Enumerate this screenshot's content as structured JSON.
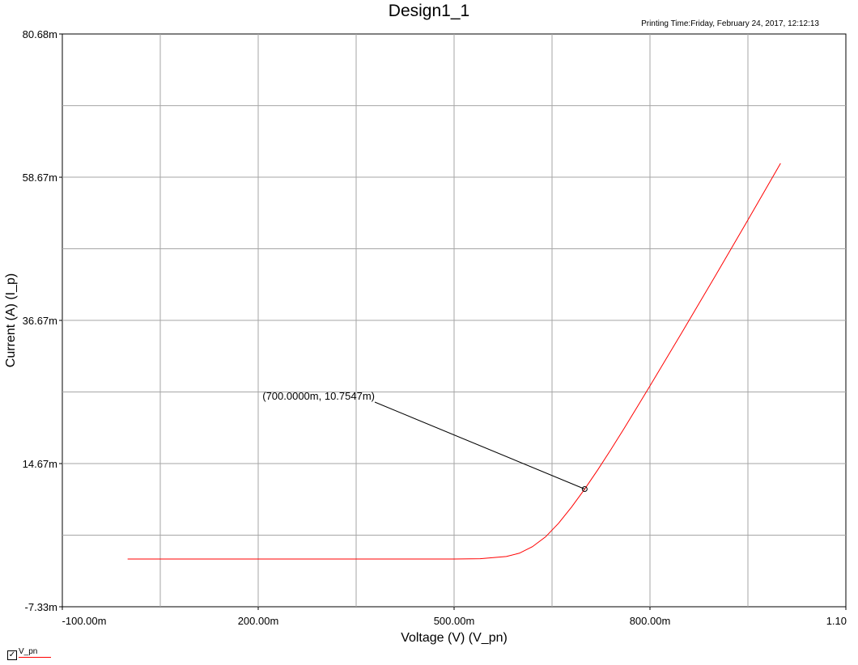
{
  "page": {
    "title": "Design1_1",
    "printing_time": "Printing Time:Friday, February 24, 2017, 12:12:13"
  },
  "legend": {
    "checked_mark": "✓",
    "series_name": "V_pn",
    "color": "#ff0000"
  },
  "chart_data": {
    "type": "line",
    "title": "Design1_1",
    "xlabel": "Voltage (V) (V_pn)",
    "ylabel": "Current (A) (I_p)",
    "xlim": [
      -0.1,
      1.1
    ],
    "ylim": [
      -0.00733,
      0.08068
    ],
    "x_ticks": [
      {
        "value": -0.1,
        "label": "-100.00m"
      },
      {
        "value": 0.2,
        "label": "200.00m"
      },
      {
        "value": 0.5,
        "label": "500.00m"
      },
      {
        "value": 0.8,
        "label": "800.00m"
      },
      {
        "value": 1.1,
        "label": "1.10"
      }
    ],
    "y_ticks": [
      {
        "value": -0.00733,
        "label": "-7.33m"
      },
      {
        "value": 0.01467,
        "label": "14.67m"
      },
      {
        "value": 0.03667,
        "label": "36.67m"
      },
      {
        "value": 0.05867,
        "label": "58.67m"
      },
      {
        "value": 0.08068,
        "label": "80.68m"
      }
    ],
    "x_minor_gridlines": [
      0.05,
      0.35,
      0.65,
      0.95
    ],
    "y_minor_gridlines": [
      0.00367,
      0.02567,
      0.04767,
      0.06967
    ],
    "grid": true,
    "series": [
      {
        "name": "V_pn",
        "color": "#ff0000",
        "x": [
          0.0,
          0.1,
          0.2,
          0.3,
          0.4,
          0.5,
          0.54,
          0.58,
          0.6,
          0.62,
          0.64,
          0.66,
          0.68,
          0.7,
          0.72,
          0.74,
          0.76,
          0.78,
          0.8,
          0.85,
          0.9,
          0.95,
          1.0
        ],
        "y": [
          0.0,
          0.0,
          0.0,
          0.0,
          0.0,
          1e-05,
          5e-05,
          0.0004,
          0.0009,
          0.0019,
          0.0034,
          0.0055,
          0.008,
          0.01075,
          0.0137,
          0.0168,
          0.02,
          0.0233,
          0.0266,
          0.035,
          0.0435,
          0.0521,
          0.0608
        ]
      }
    ],
    "annotations": [
      {
        "text": "(700.0000m, 10.7547m)",
        "x": 0.7,
        "y": 0.0107547
      }
    ]
  }
}
